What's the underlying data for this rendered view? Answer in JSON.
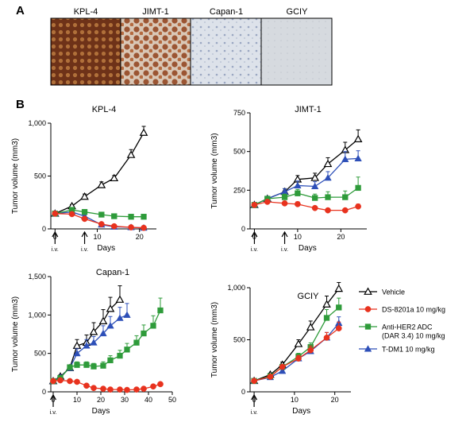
{
  "panel_labels": {
    "a": "A",
    "b": "B"
  },
  "ihc": {
    "labels": [
      "KPL-4",
      "JIMT-1",
      "Capan-1",
      "GCIY"
    ],
    "tints": [
      "#7a3a1e",
      "#9a5a3a",
      "#c9d0dc",
      "#d4d8dc"
    ]
  },
  "iv_label": "i.v.",
  "colors": {
    "vehicle": "#000000",
    "ds": "#e8321e",
    "anti": "#2e9b3a",
    "tdm1": "#2d4fb8"
  },
  "legend": [
    {
      "key": "vehicle",
      "lines": [
        "Vehicle"
      ],
      "marker": "open-triangle"
    },
    {
      "key": "ds",
      "lines": [
        "DS-8201a 10 mg/kg"
      ],
      "marker": "circle"
    },
    {
      "key": "anti",
      "lines": [
        "Anti-HER2 ADC",
        "(DAR 3.4) 10 mg/kg"
      ],
      "marker": "square"
    },
    {
      "key": "tdm1",
      "lines": [
        "T-DM1 10 mg/kg"
      ],
      "marker": "filled-triangle"
    }
  ],
  "chart_data": [
    {
      "type": "line",
      "title": "KPL-4",
      "xlabel": "Days",
      "ylabel": "Tumor volume (mm3)",
      "xlim": [
        -1,
        24
      ],
      "ylim": [
        0,
        1000
      ],
      "xticks": [
        0,
        10,
        20
      ],
      "yticks": [
        0,
        500,
        1000
      ],
      "ytick_labels": [
        "0",
        "500",
        "1,000"
      ],
      "iv_days": [
        0,
        7
      ],
      "series": [
        {
          "key": "vehicle",
          "x": [
            0,
            4,
            7,
            11,
            14,
            18,
            21
          ],
          "y": [
            145,
            215,
            305,
            415,
            480,
            700,
            910
          ],
          "err": [
            10,
            15,
            25,
            30,
            25,
            50,
            60
          ]
        },
        {
          "key": "ds",
          "x": [
            0,
            4,
            7,
            11,
            14,
            18,
            21
          ],
          "y": [
            145,
            140,
            95,
            45,
            25,
            15,
            10
          ],
          "err": [
            10,
            10,
            10,
            5,
            5,
            5,
            5
          ]
        },
        {
          "key": "anti",
          "x": [
            0,
            4,
            7,
            11,
            14,
            18,
            21
          ],
          "y": [
            145,
            180,
            160,
            135,
            120,
            115,
            115
          ],
          "err": [
            10,
            15,
            15,
            10,
            10,
            10,
            10
          ]
        },
        {
          "key": "tdm1",
          "x": [
            0,
            4,
            7,
            11,
            14,
            18,
            21
          ],
          "y": [
            145,
            160,
            120,
            40,
            20,
            15,
            10
          ],
          "err": [
            10,
            10,
            10,
            5,
            5,
            5,
            5
          ]
        }
      ]
    },
    {
      "type": "line",
      "title": "JIMT-1",
      "xlabel": "Days",
      "ylabel": "Tumor volume (mm3)",
      "xlim": [
        -1,
        26
      ],
      "ylim": [
        0,
        750
      ],
      "xticks": [
        0,
        10,
        20
      ],
      "yticks": [
        0,
        250,
        500,
        750
      ],
      "ytick_labels": [
        "0",
        "250",
        "500",
        "750"
      ],
      "iv_days": [
        0,
        7
      ],
      "series": [
        {
          "key": "vehicle",
          "x": [
            0,
            3,
            7,
            10,
            14,
            17,
            21,
            24
          ],
          "y": [
            155,
            195,
            240,
            320,
            330,
            420,
            510,
            580
          ],
          "err": [
            10,
            15,
            20,
            25,
            30,
            40,
            50,
            60
          ]
        },
        {
          "key": "ds",
          "x": [
            0,
            3,
            7,
            10,
            14,
            17,
            21,
            24
          ],
          "y": [
            155,
            175,
            165,
            160,
            135,
            120,
            120,
            145
          ],
          "err": [
            10,
            10,
            15,
            15,
            10,
            10,
            10,
            15
          ]
        },
        {
          "key": "anti",
          "x": [
            0,
            3,
            7,
            10,
            14,
            17,
            21,
            24
          ],
          "y": [
            155,
            195,
            205,
            230,
            200,
            205,
            205,
            265
          ],
          "err": [
            10,
            15,
            20,
            25,
            25,
            35,
            40,
            70
          ]
        },
        {
          "key": "tdm1",
          "x": [
            0,
            3,
            7,
            10,
            14,
            17,
            21,
            24
          ],
          "y": [
            155,
            195,
            240,
            280,
            275,
            330,
            450,
            455
          ],
          "err": [
            10,
            15,
            20,
            30,
            30,
            40,
            50,
            50
          ]
        }
      ]
    },
    {
      "type": "line",
      "title": "Capan-1",
      "xlabel": "Days",
      "ylabel": "Tumor volume (mm3)",
      "xlim": [
        -1,
        50
      ],
      "ylim": [
        0,
        1500
      ],
      "xticks": [
        0,
        10,
        20,
        30,
        40,
        50
      ],
      "yticks": [
        0,
        500,
        1000,
        1500
      ],
      "ytick_labels": [
        "0",
        "500",
        "1,000",
        "1,500"
      ],
      "iv_days": [
        0
      ],
      "series": [
        {
          "key": "vehicle",
          "x": [
            0,
            3,
            7,
            10,
            14,
            17,
            21,
            24,
            28
          ],
          "y": [
            140,
            200,
            310,
            600,
            640,
            780,
            920,
            1080,
            1200
          ],
          "err": [
            10,
            20,
            30,
            80,
            100,
            120,
            150,
            150,
            180
          ]
        },
        {
          "key": "ds",
          "x": [
            0,
            3,
            7,
            10,
            14,
            17,
            21,
            24,
            28,
            31,
            35,
            38,
            42,
            45
          ],
          "y": [
            140,
            150,
            140,
            130,
            80,
            50,
            40,
            30,
            30,
            25,
            30,
            40,
            70,
            100
          ],
          "err": [
            10,
            10,
            10,
            10,
            10,
            10,
            5,
            5,
            5,
            5,
            5,
            10,
            15,
            20
          ]
        },
        {
          "key": "anti",
          "x": [
            0,
            3,
            7,
            10,
            14,
            17,
            21,
            24,
            28,
            31,
            35,
            38,
            42,
            45
          ],
          "y": [
            140,
            180,
            320,
            350,
            350,
            330,
            340,
            410,
            470,
            550,
            640,
            760,
            860,
            1060
          ],
          "err": [
            10,
            15,
            30,
            40,
            40,
            40,
            50,
            60,
            70,
            80,
            90,
            110,
            130,
            160
          ]
        },
        {
          "key": "tdm1",
          "x": [
            0,
            3,
            7,
            10,
            14,
            17,
            21,
            24,
            28,
            31
          ],
          "y": [
            140,
            190,
            310,
            500,
            600,
            640,
            760,
            860,
            960,
            1000
          ],
          "err": [
            10,
            20,
            30,
            60,
            80,
            80,
            100,
            120,
            140,
            150
          ]
        }
      ]
    },
    {
      "type": "line",
      "title": "GCIY",
      "xlabel": "Days",
      "ylabel": "Tumor volume (mm3)",
      "xlim": [
        -1,
        24
      ],
      "ylim": [
        0,
        1000
      ],
      "xticks": [
        0,
        10,
        20
      ],
      "yticks": [
        0,
        500,
        1000
      ],
      "ytick_labels": [
        "0",
        "500",
        "1,000"
      ],
      "iv_days": [
        0
      ],
      "series": [
        {
          "key": "vehicle",
          "x": [
            0,
            4,
            7,
            11,
            14,
            18,
            21
          ],
          "y": [
            105,
            165,
            260,
            460,
            620,
            840,
            990
          ],
          "err": [
            10,
            15,
            25,
            40,
            60,
            80,
            60
          ]
        },
        {
          "key": "ds",
          "x": [
            0,
            4,
            7,
            11,
            14,
            18,
            21
          ],
          "y": [
            105,
            145,
            240,
            320,
            400,
            520,
            610
          ],
          "err": [
            10,
            15,
            20,
            30,
            40,
            50,
            60
          ]
        },
        {
          "key": "anti",
          "x": [
            0,
            4,
            7,
            11,
            14,
            18,
            21
          ],
          "y": [
            105,
            150,
            240,
            340,
            430,
            710,
            810
          ],
          "err": [
            10,
            15,
            20,
            30,
            40,
            80,
            90
          ]
        },
        {
          "key": "tdm1",
          "x": [
            0,
            4,
            7,
            11,
            14,
            18,
            21
          ],
          "y": [
            105,
            140,
            200,
            320,
            390,
            520,
            660
          ],
          "err": [
            10,
            15,
            20,
            30,
            40,
            50,
            60
          ]
        }
      ]
    }
  ]
}
